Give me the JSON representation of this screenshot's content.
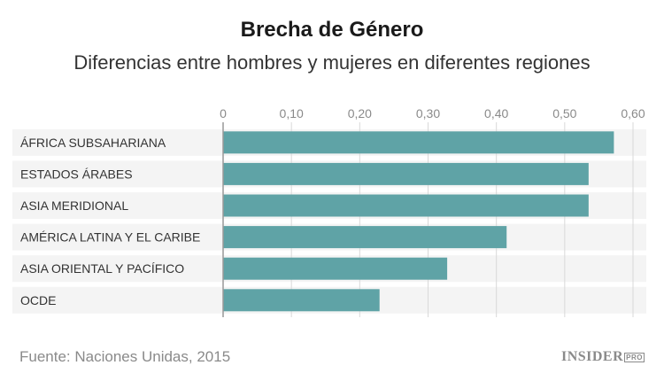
{
  "header": {
    "title": "Brecha de Género",
    "subtitle": "Diferencias entre hombres y mujeres en diferentes regiones"
  },
  "footer": {
    "source": "Fuente: Naciones Unidas, 2015",
    "logo_main": "INSIDER",
    "logo_badge": "PRO"
  },
  "colors": {
    "bar": "#5fa3a6",
    "row_band": "#f4f4f4",
    "grid": "#d9d9d9",
    "axis": "#999999",
    "tick_text": "#8a8a8a",
    "label_text": "#333333"
  },
  "chart_data": {
    "type": "bar",
    "orientation": "horizontal",
    "title": "Brecha de Género",
    "subtitle": "Diferencias entre hombres y mujeres en diferentes regiones",
    "categories": [
      "ÁFRICA SUBSAHARIANA",
      "ESTADOS ÁRABES",
      "ASIA MERIDIONAL",
      "AMÉRICA LATINA Y EL CARIBE",
      "ASIA ORIENTAL Y PACÍFICO",
      "OCDE"
    ],
    "values": [
      0.572,
      0.535,
      0.535,
      0.415,
      0.328,
      0.229
    ],
    "xlim": [
      0,
      0.6
    ],
    "ticks": [
      0,
      0.1,
      0.2,
      0.3,
      0.4,
      0.5,
      0.6
    ],
    "tick_labels": [
      "0",
      "0,10",
      "0,20",
      "0,30",
      "0,40",
      "0,50",
      "0,60"
    ],
    "tick_position": "top",
    "grid": true,
    "legend": "none"
  }
}
